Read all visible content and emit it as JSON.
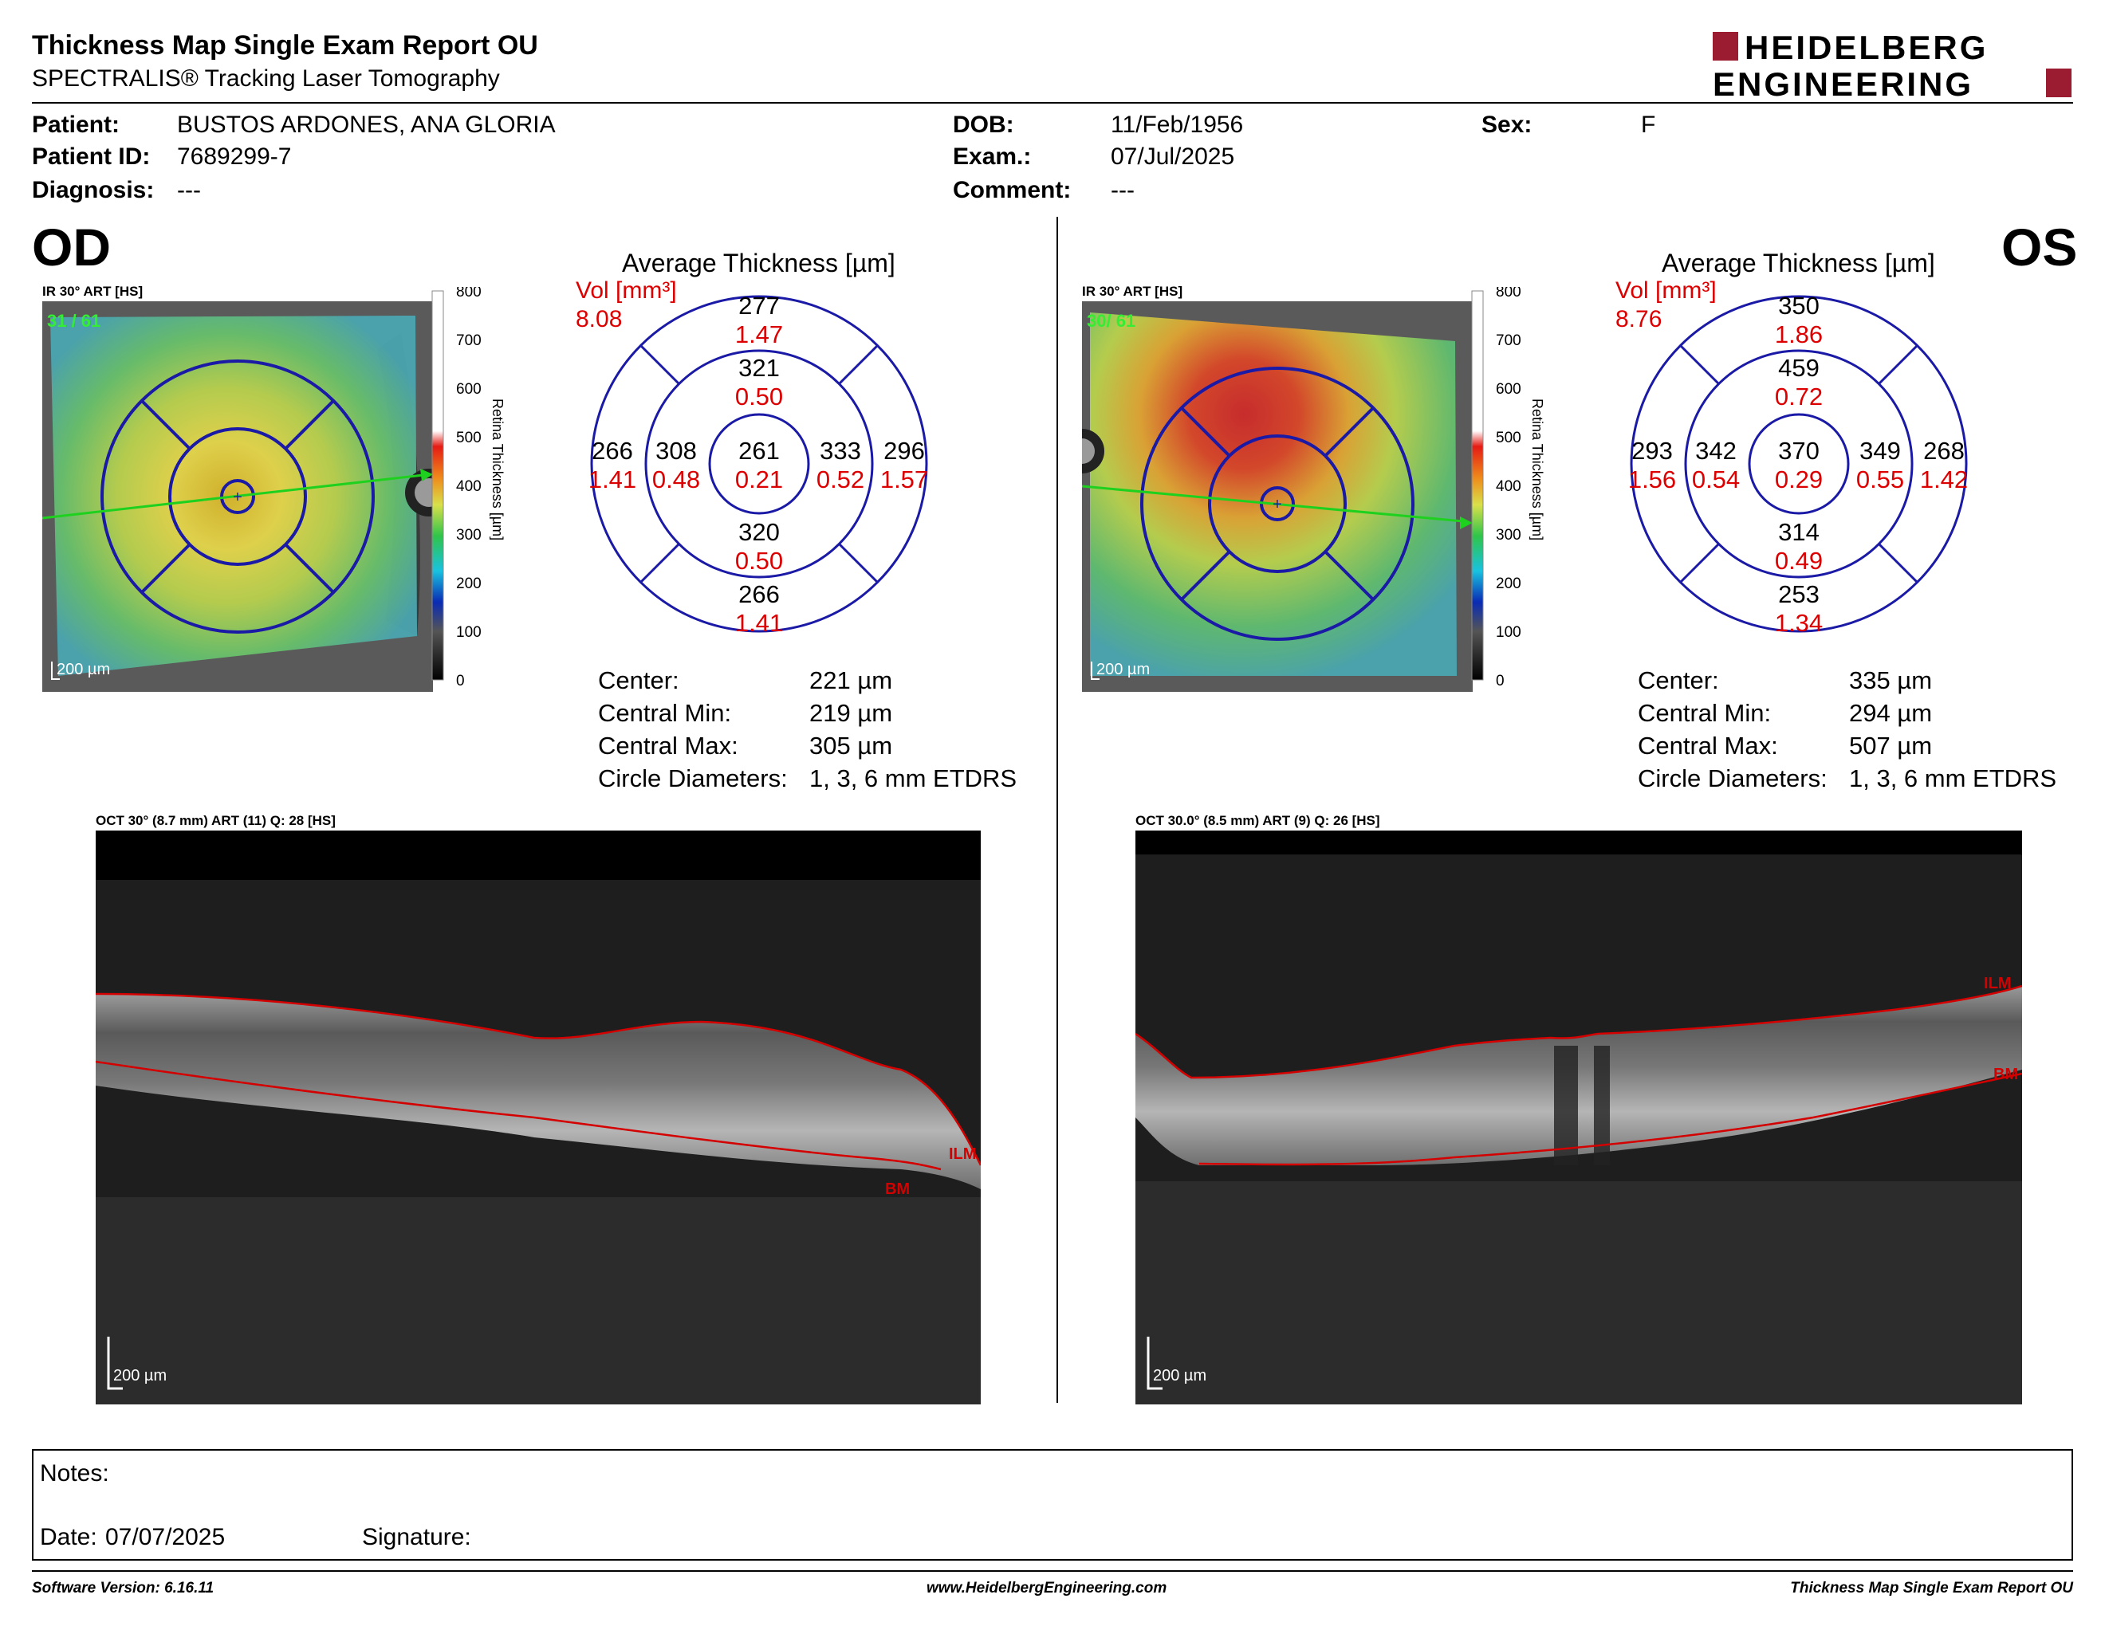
{
  "header": {
    "title": "Thickness Map Single Exam Report OU",
    "subtitle": "SPECTRALIS® Tracking Laser Tomography",
    "logo_line1": "HEIDELBERG",
    "logo_line2": "ENGINEERING"
  },
  "patient": {
    "patient_label": "Patient:",
    "patient_value": "BUSTOS ARDONES, ANA GLORIA",
    "id_label": "Patient ID:",
    "id_value": "7689299-7",
    "diagnosis_label": "Diagnosis:",
    "diagnosis_value": "---",
    "dob_label": "DOB:",
    "dob_value": "11/Feb/1956",
    "exam_label": "Exam.:",
    "exam_value": "07/Jul/2025",
    "comment_label": "Comment:",
    "comment_value": "---",
    "sex_label": "Sex:",
    "sex_value": "F"
  },
  "colorbar": {
    "ticks": [
      "800",
      "700",
      "600",
      "500",
      "400",
      "300",
      "200",
      "100",
      "0"
    ],
    "label": "Retina Thickness [µm]"
  },
  "od": {
    "eye": "OD",
    "ir_header": "IR 30° ART [HS]",
    "frames": "31 / 61",
    "scale": "200 µm",
    "avg_title": "Average Thickness [µm]",
    "vol_label": "Vol [mm³]",
    "vol_total": "8.08",
    "sectors": {
      "outer_sup": {
        "t": "277",
        "v": "1.47"
      },
      "inner_sup": {
        "t": "321",
        "v": "0.50"
      },
      "outer_nas": {
        "t": "266",
        "v": "1.41"
      },
      "inner_nas": {
        "t": "308",
        "v": "0.48"
      },
      "center": {
        "t": "261",
        "v": "0.21"
      },
      "inner_tmp": {
        "t": "333",
        "v": "0.52"
      },
      "outer_tmp": {
        "t": "296",
        "v": "1.57"
      },
      "inner_inf": {
        "t": "320",
        "v": "0.50"
      },
      "outer_inf": {
        "t": "266",
        "v": "1.41"
      }
    },
    "stats": [
      {
        "label": "Center:",
        "value": "221 µm"
      },
      {
        "label": "Central Min:",
        "value": "219 µm"
      },
      {
        "label": "Central Max:",
        "value": "305 µm"
      },
      {
        "label": "Circle Diameters:",
        "value": "1, 3, 6 mm ETDRS"
      }
    ],
    "oct_header": "OCT 30° (8.7 mm) ART (11) Q: 28 [HS]",
    "ilm": "ILM",
    "bm": "BM"
  },
  "os": {
    "eye": "OS",
    "ir_header": "IR 30° ART [HS]",
    "frames": "30/ 61",
    "scale": "200 µm",
    "avg_title": "Average Thickness [µm]",
    "vol_label": "Vol [mm³]",
    "vol_total": "8.76",
    "sectors": {
      "outer_sup": {
        "t": "350",
        "v": "1.86"
      },
      "inner_sup": {
        "t": "459",
        "v": "0.72"
      },
      "outer_nas": {
        "t": "293",
        "v": "1.56"
      },
      "inner_nas": {
        "t": "342",
        "v": "0.54"
      },
      "center": {
        "t": "370",
        "v": "0.29"
      },
      "inner_tmp": {
        "t": "349",
        "v": "0.55"
      },
      "outer_tmp": {
        "t": "268",
        "v": "1.42"
      },
      "inner_inf": {
        "t": "314",
        "v": "0.49"
      },
      "outer_inf": {
        "t": "253",
        "v": "1.34"
      }
    },
    "stats": [
      {
        "label": "Center:",
        "value": "335 µm"
      },
      {
        "label": "Central Min:",
        "value": "294 µm"
      },
      {
        "label": "Central Max:",
        "value": "507 µm"
      },
      {
        "label": "Circle Diameters:",
        "value": "1, 3, 6 mm ETDRS"
      }
    ],
    "oct_header": "OCT 30.0° (8.5 mm) ART (9) Q: 26 [HS]",
    "ilm": "ILM",
    "bm": "BM"
  },
  "notes": {
    "notes_label": "Notes:",
    "date_label": "Date:",
    "date_value": "07/07/2025",
    "signature_label": "Signature:"
  },
  "footer": {
    "software": "Software Version: 6.16.11",
    "website": "www.HeidelbergEngineering.com",
    "report": "Thickness Map Single Exam Report OU"
  },
  "colors": {
    "volume_red": "#dd0000",
    "grid_blue": "#1a1aa6",
    "logo_red": "#9b1b30",
    "scan_green": "#1fd11f",
    "segmentation_red": "#d40000"
  }
}
